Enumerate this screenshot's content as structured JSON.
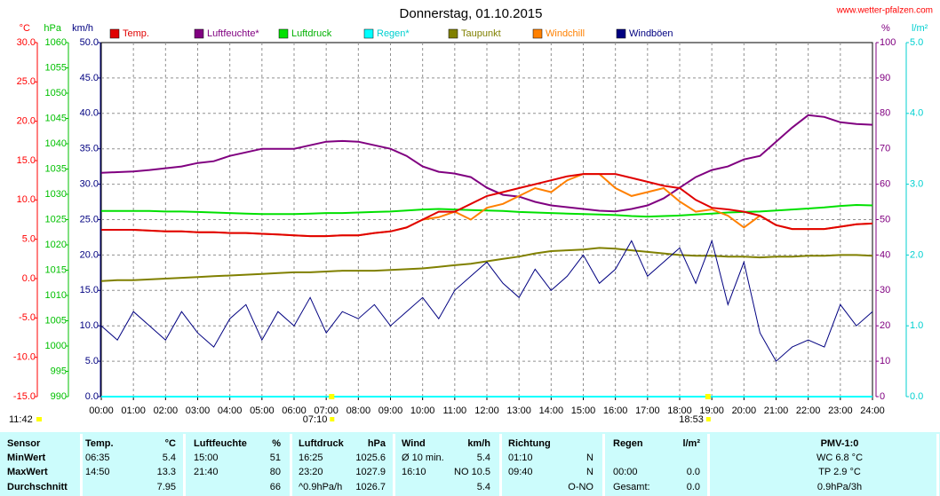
{
  "chart_data": {
    "type": "line",
    "title": "Donnerstag, 01.10.2015",
    "website": "www.wetter-pfalzen.com",
    "grid": true,
    "xlim": [
      0,
      24
    ],
    "xticks": [
      {
        "value": 0,
        "label": "00:00"
      },
      {
        "value": 1,
        "label": "01:00"
      },
      {
        "value": 2,
        "label": "02:00"
      },
      {
        "value": 3,
        "label": "03:00"
      },
      {
        "value": 4,
        "label": "04:00"
      },
      {
        "value": 5,
        "label": "05:00"
      },
      {
        "value": 6,
        "label": "06:00"
      },
      {
        "value": 7,
        "label": "07:00"
      },
      {
        "value": 8,
        "label": "08:00"
      },
      {
        "value": 9,
        "label": "09:00"
      },
      {
        "value": 10,
        "label": "10:00"
      },
      {
        "value": 11,
        "label": "11:00"
      },
      {
        "value": 12,
        "label": "12:00"
      },
      {
        "value": 13,
        "label": "13:00"
      },
      {
        "value": 14,
        "label": "14:00"
      },
      {
        "value": 15,
        "label": "15:00"
      },
      {
        "value": 16,
        "label": "16:00"
      },
      {
        "value": 17,
        "label": "17:00"
      },
      {
        "value": 18,
        "label": "18:00"
      },
      {
        "value": 19,
        "label": "19:00"
      },
      {
        "value": 20,
        "label": "20:00"
      },
      {
        "value": 21,
        "label": "21:00"
      },
      {
        "value": 22,
        "label": "22:00"
      },
      {
        "value": 23,
        "label": "23:00"
      },
      {
        "value": 24,
        "label": "24:00"
      }
    ],
    "axes": [
      {
        "id": "temperature",
        "label": "°C",
        "color": "#ff0000",
        "side": "left",
        "lim": [
          -15,
          30
        ],
        "ticks": [
          {
            "value": -15,
            "label": "-15.0"
          },
          {
            "value": -10,
            "label": "-10.0"
          },
          {
            "value": -5,
            "label": "-5.0"
          },
          {
            "value": 0,
            "label": "0.0"
          },
          {
            "value": 5,
            "label": "5.0"
          },
          {
            "value": 10,
            "label": "10.0"
          },
          {
            "value": 15,
            "label": "15.0"
          },
          {
            "value": 20,
            "label": "20.0"
          },
          {
            "value": 25,
            "label": "25.0"
          },
          {
            "value": 30,
            "label": "30.0"
          }
        ]
      },
      {
        "id": "pressure",
        "label": "hPa",
        "color": "#00c000",
        "side": "left",
        "lim": [
          990,
          1060
        ],
        "ticks": [
          990,
          995,
          1000,
          1005,
          1010,
          1015,
          1020,
          1025,
          1030,
          1035,
          1040,
          1045,
          1050,
          1055,
          1060
        ]
      },
      {
        "id": "wind",
        "label": "km/h",
        "color": "#000080",
        "side": "left",
        "grid": true,
        "lim": [
          0,
          50
        ],
        "ticks": [
          {
            "value": 0,
            "label": "0.0"
          },
          {
            "value": 5,
            "label": "5.0"
          },
          {
            "value": 10,
            "label": "10.0"
          },
          {
            "value": 15,
            "label": "15.0"
          },
          {
            "value": 20,
            "label": "20.0"
          },
          {
            "value": 25,
            "label": "25.0"
          },
          {
            "value": 30,
            "label": "30.0"
          },
          {
            "value": 35,
            "label": "35.0"
          },
          {
            "value": 40,
            "label": "40.0"
          },
          {
            "value": 45,
            "label": "45.0"
          },
          {
            "value": 50,
            "label": "50.0"
          }
        ]
      },
      {
        "id": "humidity",
        "label": "%",
        "color": "#800080",
        "side": "right",
        "lim": [
          0,
          100
        ],
        "ticks": [
          0,
          10,
          20,
          30,
          40,
          50,
          60,
          70,
          80,
          90,
          100
        ]
      },
      {
        "id": "rain",
        "label": "l/m²",
        "color": "#00d0d0",
        "side": "right",
        "lim": [
          0,
          5
        ],
        "ticks": [
          {
            "value": 0,
            "label": "0.0"
          },
          {
            "value": 1,
            "label": "1.0"
          },
          {
            "value": 2,
            "label": "2.0"
          },
          {
            "value": 3,
            "label": "3.0"
          },
          {
            "value": 4,
            "label": "4.0"
          },
          {
            "value": 5,
            "label": "5.0"
          }
        ]
      }
    ],
    "x": [
      0,
      0.5,
      1,
      1.5,
      2,
      2.5,
      3,
      3.5,
      4,
      4.5,
      5,
      5.5,
      6,
      6.5,
      7,
      7.5,
      8,
      8.5,
      9,
      9.5,
      10,
      10.5,
      11,
      11.5,
      12,
      12.5,
      13,
      13.5,
      14,
      14.5,
      15,
      15.5,
      16,
      16.5,
      17,
      17.5,
      18,
      18.5,
      19,
      19.5,
      20,
      20.5,
      21,
      21.5,
      22,
      22.5,
      23,
      23.5,
      24
    ],
    "series": [
      {
        "name": "Temp.",
        "color": "#e00000",
        "axis": "temperature",
        "values": [
          6.2,
          6.2,
          6.2,
          6.1,
          6.0,
          6.0,
          5.9,
          5.9,
          5.8,
          5.8,
          5.7,
          5.6,
          5.5,
          5.4,
          5.4,
          5.5,
          5.5,
          5.8,
          6.0,
          6.5,
          7.5,
          8.5,
          8.5,
          9.5,
          10.5,
          11.0,
          11.5,
          12.0,
          12.5,
          13.0,
          13.3,
          13.3,
          13.3,
          12.8,
          12.3,
          11.8,
          11.5,
          10.0,
          9.0,
          8.8,
          8.5,
          8.0,
          6.8,
          6.3,
          6.3,
          6.3,
          6.6,
          6.9,
          7.0
        ]
      },
      {
        "name": "Luftfeuchte*",
        "color": "#800080",
        "axis": "humidity",
        "values": [
          63.2,
          63.4,
          63.6,
          64,
          64.5,
          65,
          66,
          66.5,
          68,
          69,
          70,
          70,
          70,
          71,
          72,
          72.2,
          72,
          71,
          70,
          68,
          65,
          63.5,
          63,
          62,
          59,
          57,
          56.5,
          55,
          54,
          53.5,
          53,
          52.5,
          52.3,
          53,
          54,
          56,
          59,
          62,
          64,
          65,
          67,
          68,
          72,
          76,
          79.5,
          79,
          77.5,
          77,
          76.8
        ]
      },
      {
        "name": "Luftdruck",
        "color": "#00e000",
        "axis": "pressure",
        "values": [
          1026.7,
          1026.7,
          1026.7,
          1026.7,
          1026.6,
          1026.6,
          1026.5,
          1026.4,
          1026.3,
          1026.2,
          1026.1,
          1026.1,
          1026.1,
          1026.2,
          1026.3,
          1026.3,
          1026.4,
          1026.5,
          1026.6,
          1026.8,
          1027.0,
          1027.1,
          1027.0,
          1026.9,
          1026.8,
          1026.7,
          1026.5,
          1026.4,
          1026.3,
          1026.2,
          1026.1,
          1026.0,
          1025.9,
          1025.7,
          1025.6,
          1025.7,
          1025.8,
          1026.0,
          1026.2,
          1026.4,
          1026.5,
          1026.6,
          1026.8,
          1027.0,
          1027.2,
          1027.4,
          1027.7,
          1027.9,
          1027.8
        ]
      },
      {
        "name": "Regen*",
        "color": "#00ffff",
        "axis": "rain",
        "values": [
          0,
          0,
          0,
          0,
          0,
          0,
          0,
          0,
          0,
          0,
          0,
          0,
          0,
          0,
          0,
          0,
          0,
          0,
          0,
          0,
          0,
          0,
          0,
          0,
          0,
          0,
          0,
          0,
          0,
          0,
          0,
          0,
          0,
          0,
          0,
          0,
          0,
          0,
          0,
          0,
          0,
          0,
          0,
          0,
          0,
          0,
          0,
          0,
          0
        ]
      },
      {
        "name": "Taupunkt",
        "color": "#808000",
        "axis": "temperature",
        "values": [
          -0.3,
          -0.2,
          -0.2,
          -0.1,
          0,
          0.1,
          0.2,
          0.3,
          0.4,
          0.5,
          0.6,
          0.7,
          0.8,
          0.8,
          0.9,
          1.0,
          1.0,
          1.0,
          1.1,
          1.2,
          1.3,
          1.5,
          1.7,
          1.9,
          2.2,
          2.5,
          2.8,
          3.2,
          3.5,
          3.6,
          3.7,
          3.9,
          3.8,
          3.6,
          3.4,
          3.2,
          3.0,
          2.9,
          2.9,
          2.8,
          2.8,
          2.7,
          2.8,
          2.8,
          2.9,
          2.9,
          3.0,
          3.0,
          2.9
        ]
      },
      {
        "name": "Windchill",
        "color": "#ff8000",
        "axis": "temperature",
        "values": [
          6.2,
          6.2,
          6.2,
          6.1,
          6.0,
          6.0,
          5.9,
          5.9,
          5.8,
          5.8,
          5.7,
          5.6,
          5.5,
          5.4,
          5.4,
          5.5,
          5.5,
          5.8,
          6.0,
          6.5,
          7.5,
          7.8,
          8.5,
          7.5,
          9.0,
          9.5,
          10.5,
          11.5,
          11.0,
          12.5,
          13.3,
          13.3,
          11.5,
          10.5,
          11.0,
          11.5,
          9.8,
          8.5,
          8.8,
          8.0,
          6.5,
          8.0,
          6.8,
          6.3,
          6.3,
          6.3,
          6.6,
          6.9,
          7.0
        ]
      },
      {
        "name": "Windböen",
        "color": "#000080",
        "axis": "wind",
        "values": [
          10,
          8,
          12,
          10,
          8,
          12,
          9,
          7,
          11,
          13,
          8,
          12,
          10,
          14,
          9,
          12,
          11,
          13,
          10,
          12,
          14,
          11,
          15,
          17,
          19,
          16,
          14,
          18,
          15,
          17,
          20,
          16,
          18,
          22,
          17,
          19,
          21,
          16,
          22,
          13,
          19,
          9,
          5,
          7,
          8,
          7,
          13,
          10,
          12
        ]
      }
    ],
    "day_length": "11:42",
    "sun": [
      {
        "time": 7.17,
        "label": "07:10"
      },
      {
        "time": 18.88,
        "label": "18:53"
      }
    ],
    "table": {
      "header": [
        "Sensor",
        "Temp.",
        "°C",
        "Luftfeuchte",
        "%",
        "Luftdruck",
        "hPa",
        "Wind",
        "km/h",
        "Richtung",
        null,
        "Regen",
        "l/m²",
        "PMV-1:0"
      ],
      "rows": [
        [
          "MinWert",
          "06:35",
          "5.4",
          "15:00",
          "51",
          "16:25",
          "1025.6",
          "Ø 10 min.",
          "5.4",
          "01:10",
          "N",
          null,
          null,
          "WC 6.8 °C"
        ],
        [
          "MaxWert",
          "14:50",
          "13.3",
          "21:40",
          "80",
          "23:20",
          "1027.9",
          "16:10",
          "NO 10.5",
          "09:40",
          "N",
          "00:00",
          "0.0",
          "TP 2.9 °C"
        ],
        [
          "Durchschnitt",
          null,
          "7.95",
          null,
          "66",
          "^0.9hPa/h",
          "1026.7",
          null,
          "5.4",
          null,
          "O-NO",
          "Gesamt:",
          "0.0",
          "0.9hPa/3h"
        ]
      ]
    }
  }
}
